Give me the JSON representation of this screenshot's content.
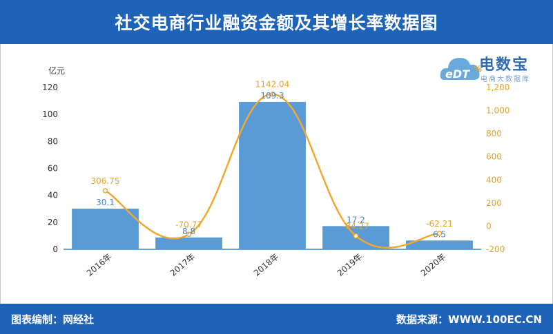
{
  "header": {
    "title": "社交电商行业融资金额及其增长率数据图"
  },
  "footer": {
    "left": "图表编制：网经社",
    "right": "数据来源：WWW.100EC.CN"
  },
  "logo": {
    "main": "电数宝",
    "sub": "电商大数据库",
    "icon_text": "eDT",
    "percent_mark": "%"
  },
  "colors": {
    "header": "#1e63b8",
    "bar": "#5b9bd5",
    "line": "#f0a830",
    "bar_label": "#4a86c5",
    "line_label": "#e8a22b"
  },
  "chart_data": {
    "type": "bar",
    "categories": [
      "2016年",
      "2017年",
      "2018年",
      "2019年",
      "2020年"
    ],
    "series": [
      {
        "kind": "bar",
        "axis": "left",
        "values": [
          30.1,
          8.8,
          109.3,
          17.2,
          6.5
        ],
        "labels": [
          "30.1",
          "8.8",
          "109.3",
          "17.2",
          "6.5"
        ]
      },
      {
        "kind": "line",
        "axis": "right",
        "values": [
          306.75,
          -70.77,
          1142.04,
          -84.27,
          -62.21
        ],
        "labels": [
          "306.75",
          "-70.77",
          "1142.04",
          "-84.27",
          "-62.21"
        ]
      }
    ],
    "ylabel": "亿元",
    "ylim": [
      0,
      120
    ],
    "yticks": [
      "0",
      "20",
      "40",
      "60",
      "80",
      "100",
      "120"
    ],
    "y2lim": [
      -200,
      1200
    ],
    "y2ticks": [
      "-200",
      "0",
      "200",
      "400",
      "600",
      "800",
      "1,000",
      "1,200"
    ],
    "grid": false,
    "legend": "none"
  }
}
